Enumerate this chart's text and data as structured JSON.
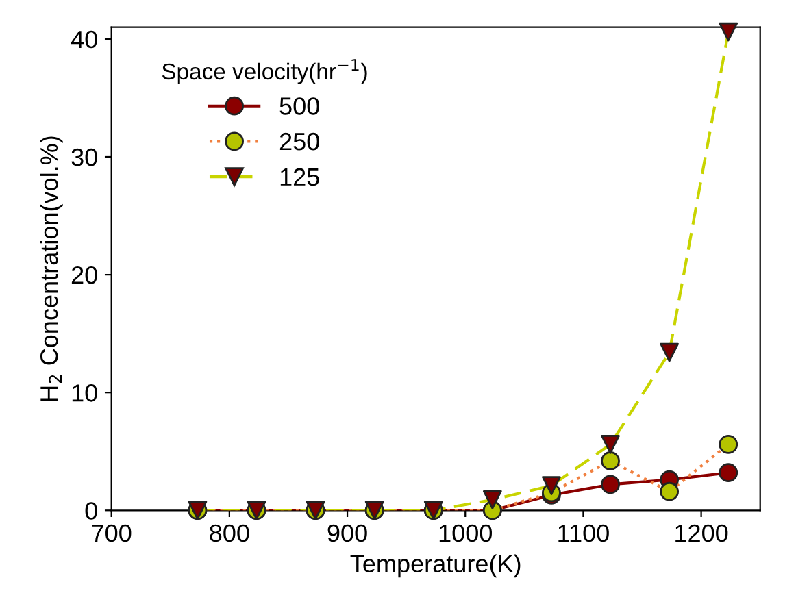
{
  "chart_data": {
    "type": "line",
    "xlabel": "Temperature(K)",
    "ylabel": "H$_{2}$ Concentration(vol.%)",
    "legend_title": "Space velocity(hr$^{−1}$)",
    "x": [
      773,
      823,
      873,
      923,
      973,
      1023,
      1073,
      1123,
      1173,
      1223
    ],
    "series": [
      {
        "name": "500",
        "color": "#8b0000",
        "colors": [
          "#8b0000",
          "#8b0000",
          "#8b0000",
          "#8b0000",
          "#8b0000",
          "#8b0000",
          "#8b0000",
          "#8b0000",
          "#8b0000",
          "#8b0000"
        ],
        "line_style": "solid",
        "marker": "circle",
        "values": [
          0,
          0,
          0,
          0,
          0,
          0,
          1.3,
          2.2,
          2.6,
          3.2
        ]
      },
      {
        "name": "250",
        "color": "#f08040",
        "colors": [
          "#b5c400",
          "#b5c400",
          "#b5c400",
          "#b5c400",
          "#b5c400",
          "#b5c400",
          "#b5c400",
          "#b5c400",
          "#b5c400",
          "#b5c400"
        ],
        "line_style": "dotted",
        "marker": "circle",
        "values": [
          0,
          0,
          0,
          0,
          0,
          0,
          1.5,
          4.2,
          1.6,
          5.6
        ]
      },
      {
        "name": "125",
        "color": "#c8d400",
        "colors": [
          "#7a0000",
          "#7a0000",
          "#7a0000",
          "#7a0000",
          "#7a0000",
          "#7a0000",
          "#7a0000",
          "#7a0000",
          "#7a0000",
          "#7a0000"
        ],
        "line_style": "dashed",
        "marker": "triangle",
        "values": [
          0,
          0,
          0,
          0,
          0,
          0.9,
          2.1,
          5.6,
          13.4,
          40.6
        ]
      }
    ],
    "xlim": [
      700,
      1250
    ],
    "xticks": [
      700,
      800,
      900,
      1000,
      1100,
      1200
    ],
    "ylim": [
      0,
      41
    ],
    "yticks": [
      0,
      10,
      20,
      30,
      40
    ],
    "grid": false,
    "legend": "top left"
  }
}
